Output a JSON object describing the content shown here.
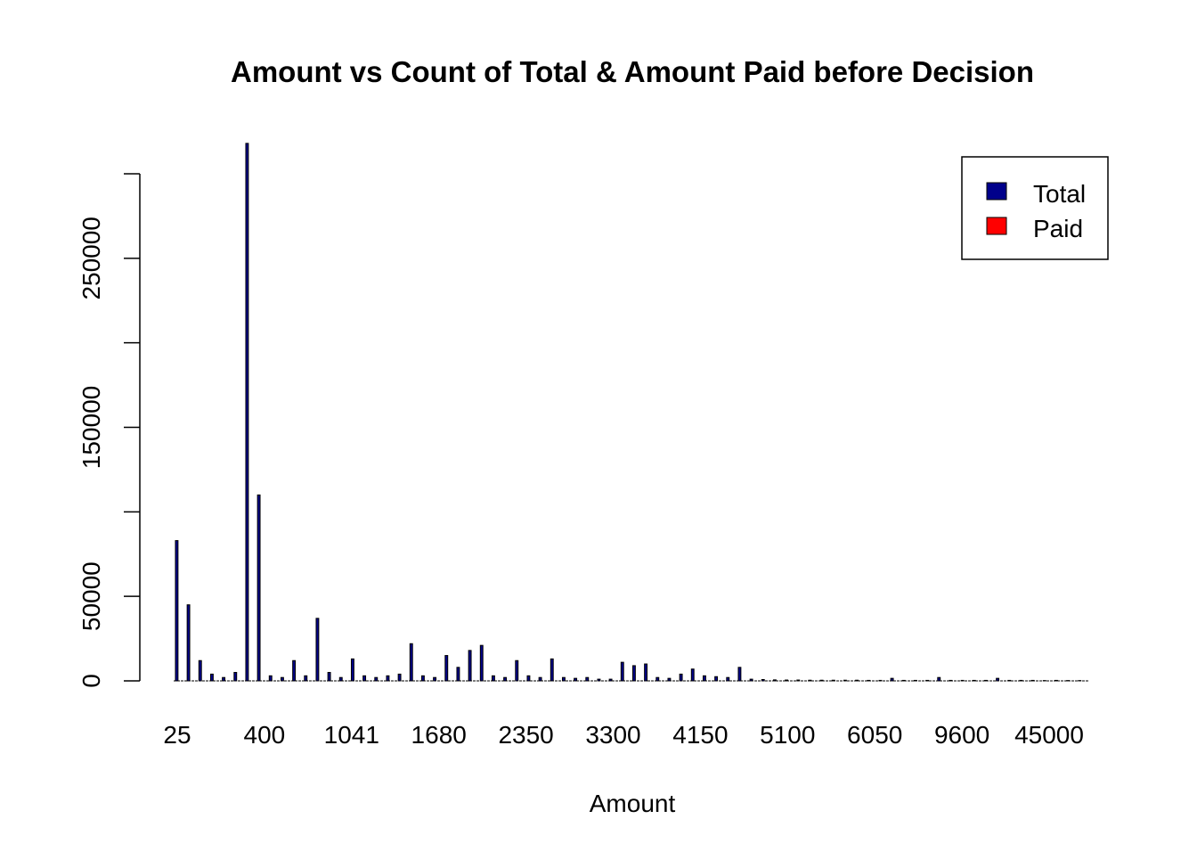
{
  "chart_data": {
    "type": "bar",
    "title": "Amount vs Count of Total & Amount Paid before Decision",
    "xlabel": "Amount",
    "ylabel": "",
    "ylim": [
      0,
      300000
    ],
    "yticks": [
      0,
      50000,
      100000,
      150000,
      200000,
      250000,
      300000
    ],
    "ytick_labels": [
      "0",
      "50000",
      "",
      "150000",
      "",
      "250000",
      ""
    ],
    "xtick_labels": [
      "25",
      "400",
      "1041",
      "1680",
      "2350",
      "3300",
      "4150",
      "5100",
      "6050",
      "9600",
      "45000"
    ],
    "legend": {
      "position": "top-right",
      "entries": [
        {
          "label": "Total",
          "color": "#00008B"
        },
        {
          "label": "Paid",
          "color": "#FF0000"
        }
      ]
    },
    "grid": false,
    "series": [
      {
        "name": "Total",
        "color": "#00008B",
        "values": [
          83000,
          45000,
          12000,
          4000,
          2000,
          5000,
          318000,
          110000,
          3000,
          2000,
          12000,
          3000,
          37000,
          5000,
          2000,
          13000,
          3000,
          2000,
          3000,
          4000,
          22000,
          3000,
          2000,
          15000,
          8000,
          18000,
          21000,
          3000,
          2000,
          12000,
          3000,
          2000,
          13000,
          2000,
          1500,
          2000,
          1000,
          1000,
          11000,
          9000,
          10000,
          2000,
          1500,
          4000,
          7000,
          3000,
          2500,
          2000,
          8000,
          1000,
          800,
          600,
          500,
          500,
          400,
          400,
          400,
          400,
          400,
          300,
          300,
          1500,
          300,
          300,
          300,
          2000,
          300,
          300,
          300,
          300,
          1500,
          300,
          300,
          300,
          200,
          300,
          200,
          200
        ]
      },
      {
        "name": "Paid",
        "color": "#FF0000",
        "values": [
          0,
          0,
          0,
          0,
          0,
          0,
          0,
          0,
          0,
          0,
          0,
          0,
          0,
          0,
          0,
          0,
          0,
          0,
          0,
          0,
          0,
          0,
          0,
          0,
          0,
          0,
          0,
          0,
          0,
          0,
          0,
          0,
          0,
          0,
          0,
          0,
          0,
          0,
          0,
          0,
          0,
          0,
          0,
          0,
          0,
          0,
          0,
          0,
          0,
          0,
          0,
          0,
          0,
          0,
          0,
          0,
          0,
          0,
          0,
          0,
          0,
          0,
          0,
          0,
          0,
          0,
          0,
          0,
          0,
          0,
          0,
          0,
          0,
          0,
          0,
          0,
          0,
          0
        ]
      }
    ]
  }
}
